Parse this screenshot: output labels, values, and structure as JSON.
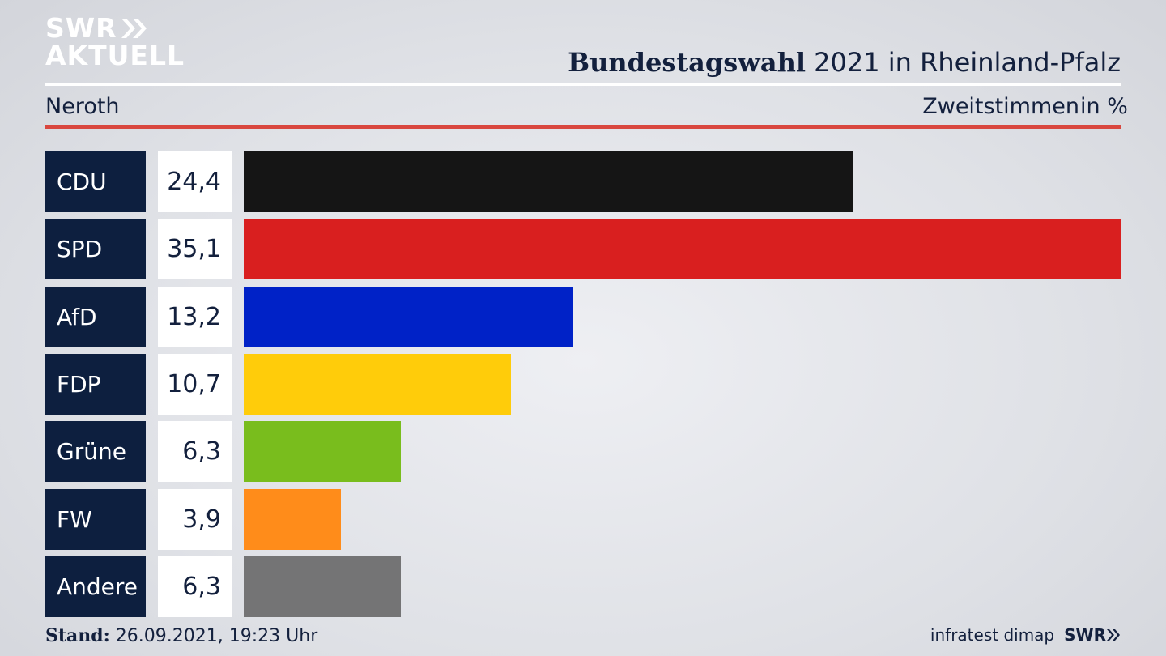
{
  "branding": {
    "logo_line1": "SWR",
    "logo_line2": "AKTUELL",
    "footer_logo": "SWR"
  },
  "header": {
    "title_bold": "Bundestagswahl",
    "title_rest": " 2021 in Rheinland-Pfalz",
    "location": "Neroth",
    "metric": "Zweitstimmen",
    "unit": "in %"
  },
  "chart_data": {
    "type": "bar",
    "categories": [
      "CDU",
      "SPD",
      "AfD",
      "FDP",
      "Grüne",
      "FW",
      "Andere"
    ],
    "values": [
      24.4,
      35.1,
      13.2,
      10.7,
      6.3,
      3.9,
      6.3
    ],
    "value_labels": [
      "24,4",
      "35,1",
      "13,2",
      "10,7",
      "6,3",
      "3,9",
      "6,3"
    ],
    "colors": [
      "#151515",
      "#d91f1f",
      "#0022c7",
      "#ffcc0a",
      "#79bd1d",
      "#ff8c1a",
      "#747475"
    ],
    "orientation": "horizontal"
  },
  "footer": {
    "stand_label": "Stand:",
    "stand_value": " 26.09.2021, 19:23 Uhr",
    "source": "infratest dimap"
  }
}
